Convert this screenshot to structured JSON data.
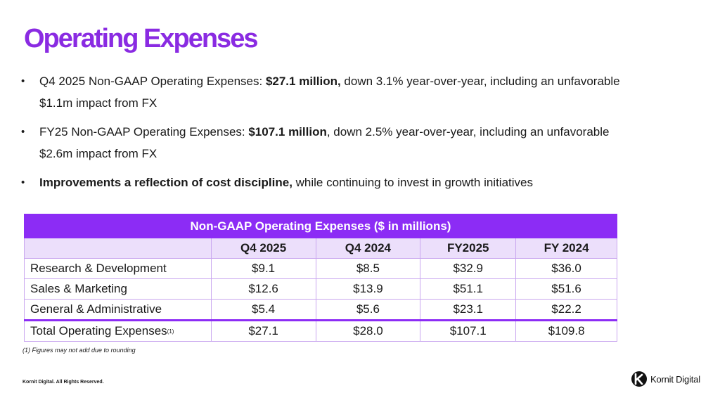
{
  "title": "Operating Expenses",
  "bullets": [
    {
      "pre": "Q4 2025 Non-GAAP Operating Expenses: ",
      "bold": "$27.1 million,",
      "post": " down 3.1% year-over-year, including an unfavorable $1.1m impact from FX"
    },
    {
      "pre": "FY25 Non-GAAP Operating Expenses: ",
      "bold": "$107.1 million",
      "post": ", down 2.5% year-over-year, including an unfavorable $2.6m impact from FX"
    },
    {
      "pre": "",
      "bold": "Improvements a reflection of cost discipline,",
      "post": " while continuing to invest in growth initiatives"
    }
  ],
  "table": {
    "title": "Non-GAAP Operating Expenses ($ in millions)",
    "columns": [
      "Q4 2025",
      "Q4 2024",
      "FY2025",
      "FY 2024"
    ],
    "rows": [
      {
        "label": "Research & Development",
        "values": [
          "$9.1",
          "$8.5",
          "$32.9",
          "$36.0"
        ]
      },
      {
        "label": "Sales & Marketing",
        "values": [
          "$12.6",
          "$13.9",
          "$51.1",
          "$51.6"
        ]
      },
      {
        "label": "General & Administrative",
        "values": [
          "$5.4",
          "$5.6",
          "$23.1",
          "$22.2"
        ]
      }
    ],
    "total": {
      "label": "Total Operating Expenses",
      "footnote_mark": "(1)",
      "values": [
        "$27.1",
        "$28.0",
        "$107.1",
        "$109.8"
      ]
    }
  },
  "footnote": "(1) Figures may not add due to rounding",
  "copyright": "Kornit Digital. All Rights Reserved.",
  "logo": {
    "mark": "k",
    "text": "Kornit Digital"
  },
  "colors": {
    "accent": "#8c2cf5",
    "title": "#8a2be2",
    "header_bg": "#ecdffb"
  }
}
